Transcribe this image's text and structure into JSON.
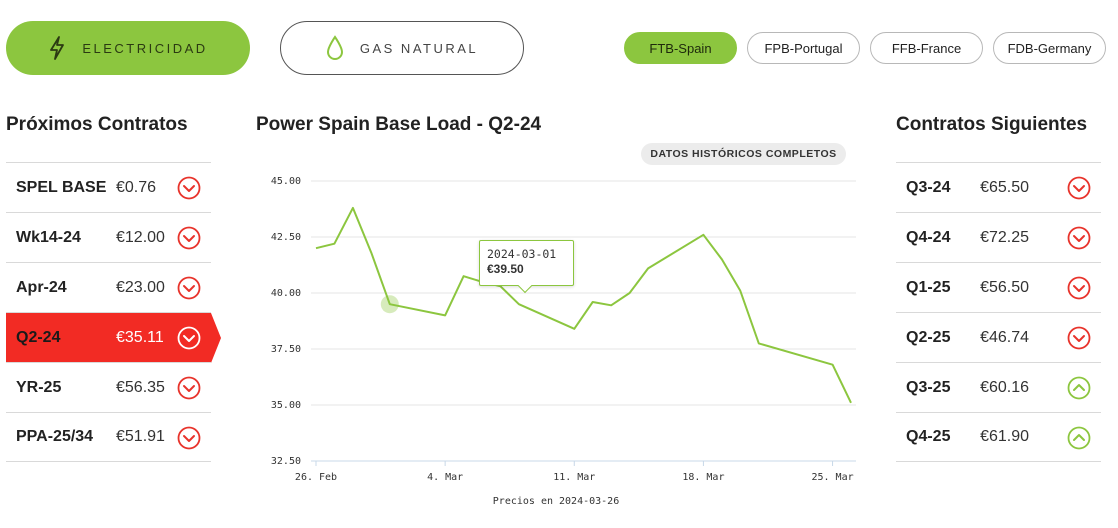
{
  "commodities": {
    "electricity": {
      "label": "ELECTRICIDAD",
      "icon": "lightning-icon"
    },
    "gas": {
      "label": "GAS NATURAL",
      "icon": "flame-drop-icon"
    }
  },
  "markets": [
    "FTB-Spain",
    "FPB-Portugal",
    "FFB-France",
    "FDB-Germany"
  ],
  "active_market": "FTB-Spain",
  "left_panel": {
    "title": "Próximos Contratos",
    "rows": [
      {
        "name": "SPEL BASE",
        "price": "€0.76",
        "trend": "down"
      },
      {
        "name": "Wk14-24",
        "price": "€12.00",
        "trend": "down"
      },
      {
        "name": "Apr-24",
        "price": "€23.00",
        "trend": "down"
      },
      {
        "name": "Q2-24",
        "price": "€35.11",
        "trend": "down",
        "selected": true
      },
      {
        "name": "YR-25",
        "price": "€56.35",
        "trend": "down"
      },
      {
        "name": "PPA-25/34",
        "price": "€51.91",
        "trend": "down"
      }
    ]
  },
  "right_panel": {
    "title": "Contratos Siguientes",
    "rows": [
      {
        "name": "Q3-24",
        "price": "€65.50",
        "trend": "down"
      },
      {
        "name": "Q4-24",
        "price": "€72.25",
        "trend": "down"
      },
      {
        "name": "Q1-25",
        "price": "€56.50",
        "trend": "down"
      },
      {
        "name": "Q2-25",
        "price": "€46.74",
        "trend": "down"
      },
      {
        "name": "Q3-25",
        "price": "€60.16",
        "trend": "up"
      },
      {
        "name": "Q4-25",
        "price": "€61.90",
        "trend": "up"
      }
    ]
  },
  "chart": {
    "historical_button": "DATOS HISTÓRICOS COMPLETOS",
    "price_note": "Precios en 2024-03-26",
    "tooltip": {
      "date": "2024-03-01",
      "value": "€39.50"
    }
  },
  "chart_data": {
    "type": "line",
    "title": "Power Spain Base Load - Q2-24",
    "xlabel": "",
    "ylabel": "",
    "ylim": [
      32.5,
      45.0
    ],
    "yticks": [
      32.5,
      35.0,
      37.5,
      40.0,
      42.5,
      45.0
    ],
    "ytick_labels": [
      "32.50",
      "35.00",
      "37.50",
      "40.00",
      "42.50",
      "45.00"
    ],
    "xticks": [
      "2024-02-26",
      "2024-03-04",
      "2024-03-11",
      "2024-03-18",
      "2024-03-25"
    ],
    "xtick_labels": [
      "26. Feb",
      "4. Mar",
      "11. Mar",
      "18. Mar",
      "25. Mar"
    ],
    "grid": true,
    "color": "#8cc63f",
    "series": [
      {
        "x": [
          "2024-02-26",
          "2024-02-27",
          "2024-02-28",
          "2024-02-29",
          "2024-03-01",
          "2024-03-04",
          "2024-03-05",
          "2024-03-06",
          "2024-03-07",
          "2024-03-08",
          "2024-03-11",
          "2024-03-12",
          "2024-03-13",
          "2024-03-14",
          "2024-03-15",
          "2024-03-18",
          "2024-03-19",
          "2024-03-20",
          "2024-03-21",
          "2024-03-25",
          "2024-03-26"
        ],
        "values": [
          42.0,
          42.2,
          43.8,
          41.8,
          39.5,
          39.0,
          40.75,
          40.5,
          40.3,
          39.5,
          38.4,
          39.6,
          39.45,
          40.0,
          41.1,
          42.6,
          41.5,
          40.1,
          37.75,
          36.8,
          35.1
        ]
      }
    ]
  }
}
